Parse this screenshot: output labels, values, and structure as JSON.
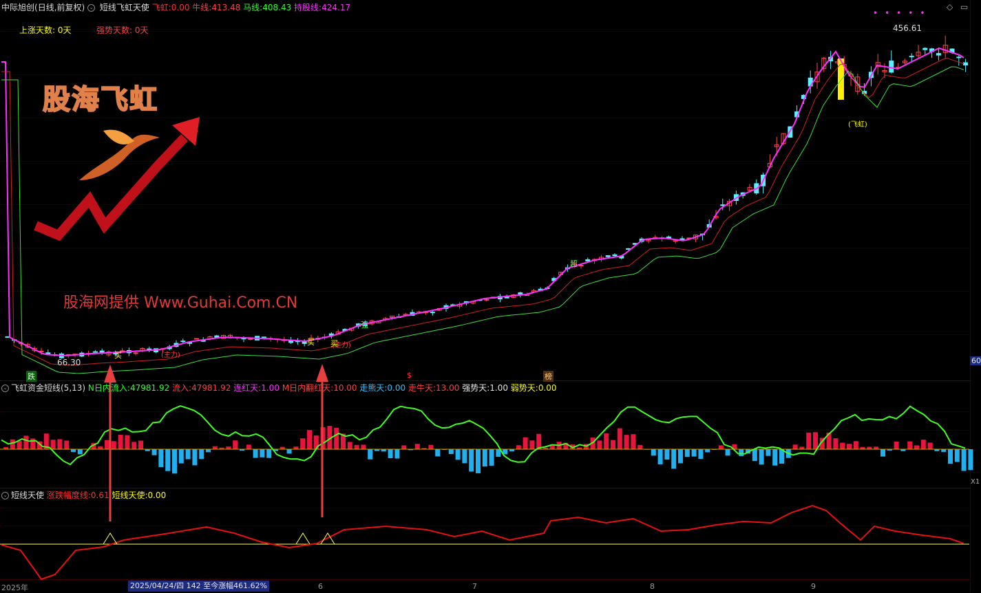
{
  "header": {
    "stock_name": "中际旭创",
    "period": "(日线,前复权)",
    "indicator_name": "短线飞虹天使",
    "fh_label": "飞虹:",
    "fh_value": "0.00",
    "nx_label": "牛线:",
    "nx_value": "413.48",
    "mx_label": "马线:",
    "mx_value": "408.43",
    "cg_label": "持股线:",
    "cg_value": "424.17",
    "up_days": "上涨天数: 0天",
    "strong_days": "强势天数: 0天",
    "colors": {
      "fh": "#ff3030",
      "nx": "#ff4040",
      "mx": "#30ff30",
      "cg": "#ff30ff",
      "up": "#ffff00"
    }
  },
  "logo": {
    "title": "股海飞虹",
    "icon": "phoenix-rising-arrow-icon"
  },
  "watermark": "股海网提供 Www.Guhai.Com.CN",
  "price_labels": {
    "high": "456.61",
    "low": "66.30",
    "right_edge": "60"
  },
  "signals": {
    "buy": "买",
    "sell_left": "跌",
    "special": "$",
    "bang": "榜",
    "zhu_li": "(主力)",
    "zhu_li2": "(主力)",
    "fei_hong": "(飞虹)",
    "chao": "超",
    "lian": "强"
  },
  "panel2": {
    "title": "飞虹资金短线(5,13)",
    "n_in_label": "N日内流入:",
    "n_in_value": "47981.92",
    "in_label": "流入:",
    "in_value": "47981.92",
    "lh_label": "连红天:",
    "lh_value": "1.00",
    "m_label": "M日内翻红天:",
    "m_value": "10.00",
    "zx_label": "走熊天:",
    "zx_value": "0.00",
    "zn_label": "走牛天:",
    "zn_value": "13.00",
    "qs_label": "强势天:",
    "qs_value": "1.00",
    "rs_label": "弱势天:",
    "rs_value": "0.00",
    "right_label": "X1"
  },
  "panel3": {
    "title": "短线天使",
    "zd_label": "涨跌幅度线:",
    "zd_value": "0.61",
    "dx_label": "短线天使:",
    "dx_value": "0.00"
  },
  "axis": {
    "ticks": [
      "2025年",
      "6",
      "7",
      "8",
      "9"
    ],
    "status": "2025/04/24/四 142 至今涨幅461.62%"
  },
  "chart_data": {
    "type": "candlestick",
    "title": "中际旭创 (日线,前复权)",
    "period_start": "2025/04/24",
    "low": 66.3,
    "high": 456.61,
    "change_since": "461.62%",
    "last_values": {
      "牛线": 413.48,
      "马线": 408.43,
      "持股线": 424.17
    },
    "months": [
      "2025年",
      "6",
      "7",
      "8",
      "9"
    ]
  }
}
